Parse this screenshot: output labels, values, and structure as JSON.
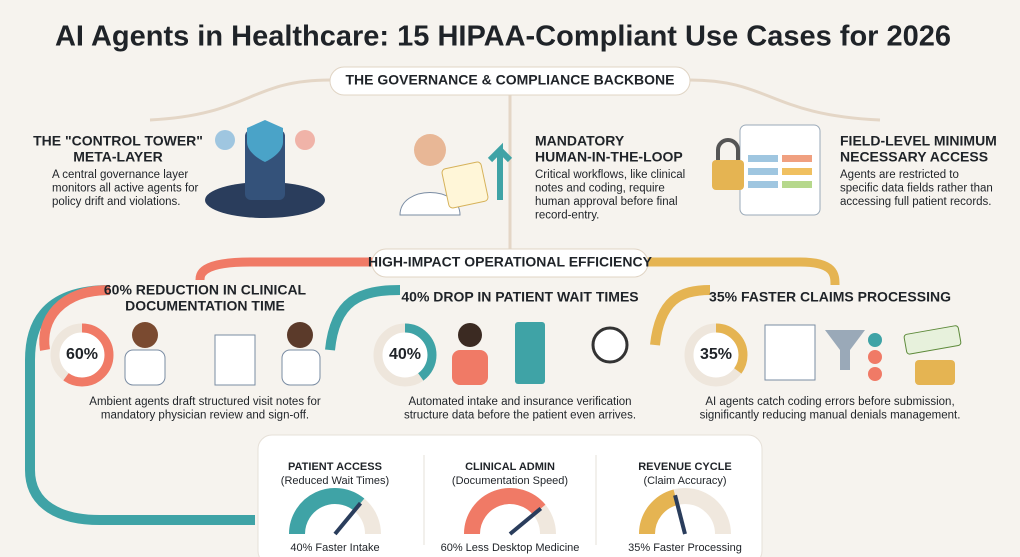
{
  "title": "AI Agents in Healthcare: 15 HIPAA-Compliant Use Cases for 2026",
  "governance": {
    "header": "THE GOVERNANCE & COMPLIANCE BACKBONE",
    "items": [
      {
        "title_lines": [
          "THE \"CONTROL TOWER\"",
          "META-LAYER"
        ],
        "text_lines": [
          "A central governance layer",
          "monitors all active agents for",
          "policy drift and violations."
        ]
      },
      {
        "title_lines": [
          "MANDATORY",
          "HUMAN-IN-THE-LOOP"
        ],
        "text_lines": [
          "Critical workflows, like clinical",
          "notes and coding, require",
          "human approval before final",
          "record-entry."
        ]
      },
      {
        "title_lines": [
          "FIELD-LEVEL MINIMUM",
          "NECESSARY ACCESS"
        ],
        "text_lines": [
          "Agents are restricted to",
          "specific data fields rather than",
          "accessing full patient records."
        ]
      }
    ]
  },
  "efficiency": {
    "header": "HIGH-IMPACT OPERATIONAL EFFICIENCY",
    "items": [
      {
        "title_lines": [
          "60% REDUCTION IN CLINICAL",
          "DOCUMENTATION TIME"
        ],
        "value": 60,
        "value_label": "60%",
        "text_lines": [
          "Ambient agents draft structured visit notes for",
          "mandatory physician review and sign-off."
        ]
      },
      {
        "title_lines": [
          "40% DROP IN PATIENT WAIT TIMES"
        ],
        "value": 40,
        "value_label": "40%",
        "text_lines": [
          "Automated intake and insurance verification",
          "structure data before the patient even arrives."
        ]
      },
      {
        "title_lines": [
          "35% FASTER CLAIMS PROCESSING"
        ],
        "value": 35,
        "value_label": "35%",
        "text_lines": [
          "AI agents catch coding errors before submission,",
          "significantly reducing manual denials management."
        ]
      }
    ]
  },
  "gauges": [
    {
      "title": "PATIENT ACCESS",
      "subtitle": "(Reduced Wait Times)",
      "caption": "40% Faster Intake"
    },
    {
      "title": "CLINICAL ADMIN",
      "subtitle": "(Documentation Speed)",
      "caption": "60% Less Desktop Medicine"
    },
    {
      "title": "REVENUE CYCLE",
      "subtitle": "(Claim Accuracy)",
      "caption": "35% Faster Processing"
    }
  ]
}
